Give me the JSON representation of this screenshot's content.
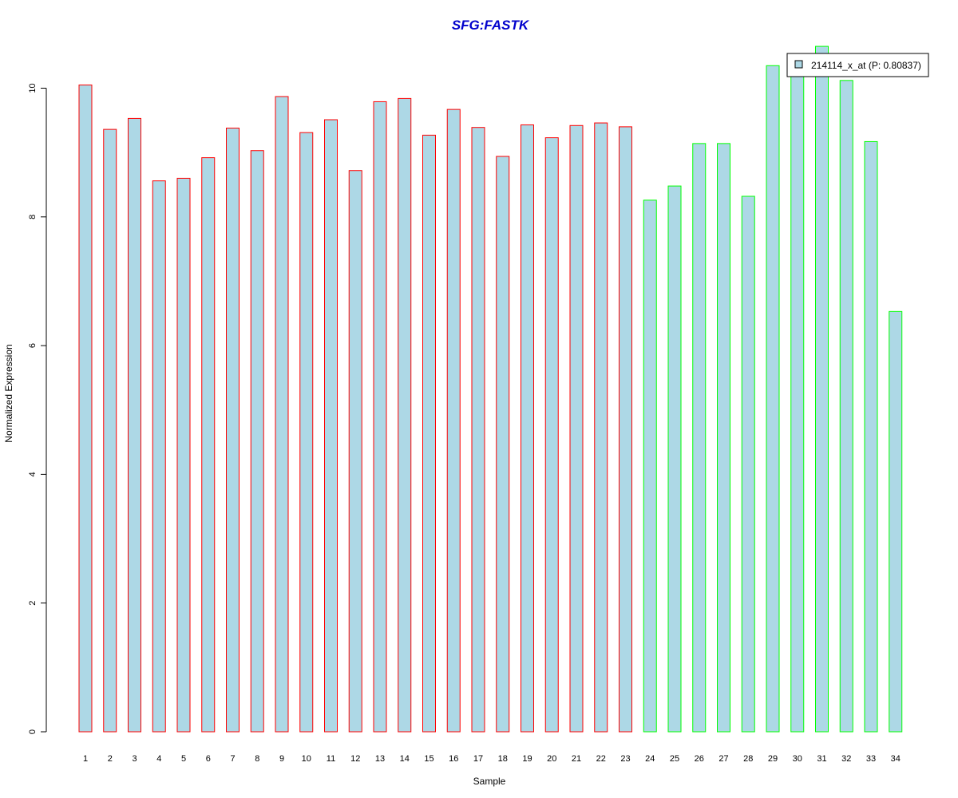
{
  "chart_data": {
    "type": "bar",
    "title": "SFG:FASTK",
    "xlabel": "Sample",
    "ylabel": "Normalized Expression",
    "ylim": [
      0,
      10.6
    ],
    "yticks": [
      "0",
      "2",
      "4",
      "6",
      "8",
      "10"
    ],
    "categories": [
      "1",
      "2",
      "3",
      "4",
      "5",
      "6",
      "7",
      "8",
      "9",
      "10",
      "11",
      "12",
      "13",
      "14",
      "15",
      "16",
      "17",
      "18",
      "19",
      "20",
      "21",
      "22",
      "23",
      "24",
      "25",
      "26",
      "27",
      "28",
      "29",
      "30",
      "31",
      "32",
      "33",
      "34"
    ],
    "series": [
      {
        "name": "214114_x_at (P: 0.80837)",
        "values": [
          10.05,
          9.36,
          9.53,
          8.56,
          8.6,
          8.92,
          9.38,
          9.03,
          9.87,
          9.31,
          9.51,
          8.72,
          9.79,
          9.84,
          9.27,
          9.67,
          9.39,
          8.94,
          9.43,
          9.23,
          9.42,
          9.46,
          9.4,
          8.26,
          8.48,
          9.14,
          9.14,
          8.32,
          10.35,
          10.5,
          10.65,
          10.12,
          9.17,
          6.53
        ]
      }
    ],
    "group_split_after": 23,
    "colors": {
      "fill": "#add8e6",
      "group1_border": "#ff0000",
      "group2_border": "#00ff00",
      "title": "#0000cc"
    },
    "grid": false,
    "legend_position": "top-right"
  }
}
